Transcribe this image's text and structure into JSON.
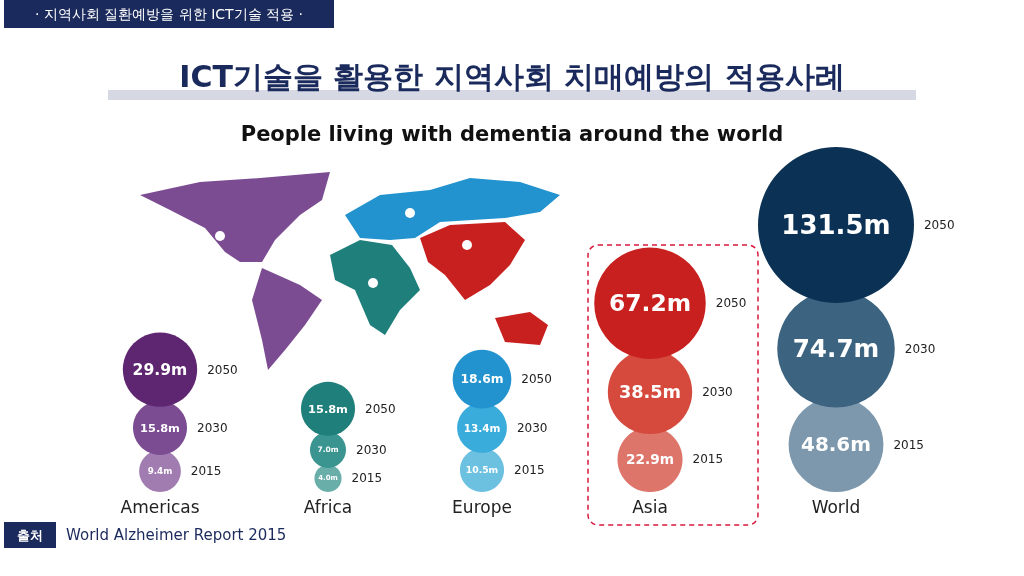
{
  "chart_data": {
    "type": "other",
    "title": "ICT기술을 활용한 지역사회 치매예방의 적용사례",
    "subtitle": "People living with dementia around the world",
    "categories": [
      "Americas",
      "Africa",
      "Europe",
      "Asia",
      "World"
    ],
    "series": [
      {
        "name": "2015",
        "values": [
          9.4,
          4.0,
          10.5,
          22.9,
          48.6
        ],
        "value_labels": [
          "9.4m",
          "4.0m",
          "10.5m",
          "22.9m",
          "48.6m"
        ],
        "colors": [
          "#a07cb0",
          "#6aaeaa",
          "#6cc0e0",
          "#de756a",
          "#7d98ac"
        ]
      },
      {
        "name": "2030",
        "values": [
          15.8,
          7.0,
          13.4,
          38.5,
          74.7
        ],
        "value_labels": [
          "15.8m",
          "7.0m",
          "13.4m",
          "38.5m",
          "74.7m"
        ],
        "colors": [
          "#7c4c92",
          "#3a9490",
          "#3aacdc",
          "#d64a3e",
          "#3c6480"
        ]
      },
      {
        "name": "2050",
        "values": [
          29.9,
          15.8,
          18.6,
          67.2,
          131.5
        ],
        "value_labels": [
          "29.9m",
          "15.8m",
          "18.6m",
          "67.2m",
          "131.5m"
        ],
        "colors": [
          "#5e2570",
          "#1f7f7b",
          "#2393cf",
          "#c8201f",
          "#0b3254"
        ]
      }
    ],
    "annotations": [
      "· 지역사회 질환예방을 위한 ICT기술 적용 ·",
      "출처",
      "World Alzheimer Report 2015"
    ]
  }
}
